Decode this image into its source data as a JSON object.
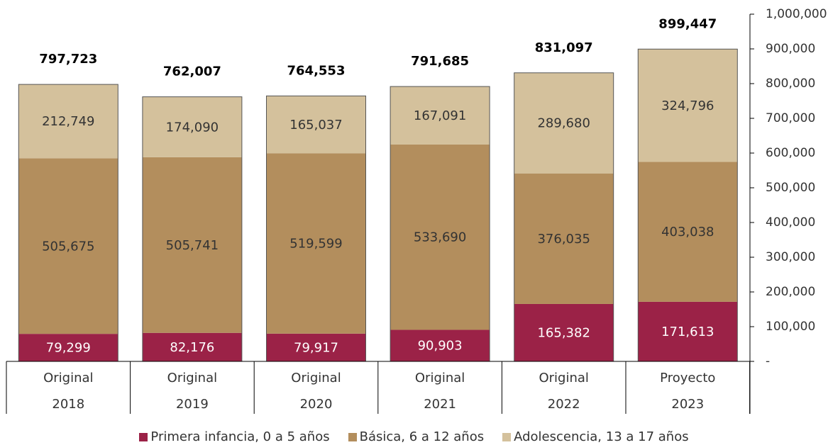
{
  "chart_data": {
    "type": "bar",
    "stacked": true,
    "categories": [
      [
        "Original",
        "2018"
      ],
      [
        "Original",
        "2019"
      ],
      [
        "Original",
        "2020"
      ],
      [
        "Original",
        "2021"
      ],
      [
        "Original",
        "2022"
      ],
      [
        "Proyecto",
        "2023"
      ]
    ],
    "series": [
      {
        "name": "Primera infancia, 0 a 5 años",
        "color": "#9b2247",
        "label_color": "#ffffff",
        "values": [
          79299,
          82176,
          79917,
          90903,
          165382,
          171613
        ],
        "labels": [
          "79,299",
          "82,176",
          "79,917",
          "90,903",
          "165,382",
          "171,613"
        ]
      },
      {
        "name": "Básica, 6 a 12 años",
        "color": "#b38e5d",
        "label_color": "#333333",
        "values": [
          505675,
          505741,
          519599,
          533690,
          376035,
          403038
        ],
        "labels": [
          "505,675",
          "505,741",
          "519,599",
          "533,690",
          "376,035",
          "403,038"
        ]
      },
      {
        "name": "Adolescencia, 13 a 17 años",
        "color": "#d4c19c",
        "label_color": "#333333",
        "values": [
          212749,
          174090,
          165037,
          167091,
          289680,
          324796
        ],
        "labels": [
          "212,749",
          "174,090",
          "165,037",
          "167,091",
          "289,680",
          "324,796"
        ]
      }
    ],
    "totals": [
      797723,
      762007,
      764553,
      791685,
      831097,
      899447
    ],
    "total_labels": [
      "797,723",
      "762,007",
      "764,553",
      "791,685",
      "831,097",
      "899,447"
    ],
    "y_axis": {
      "position": "right",
      "ylim": [
        0,
        1000000
      ],
      "ticks": [
        0,
        100000,
        200000,
        300000,
        400000,
        500000,
        600000,
        700000,
        800000,
        900000,
        1000000
      ],
      "tick_labels": [
        "-",
        "100,000",
        "200,000",
        "300,000",
        "400,000",
        "500,000",
        "600,000",
        "700,000",
        "800,000",
        "900,000",
        "1,000,000"
      ]
    },
    "grid": false,
    "legend_position": "bottom"
  }
}
